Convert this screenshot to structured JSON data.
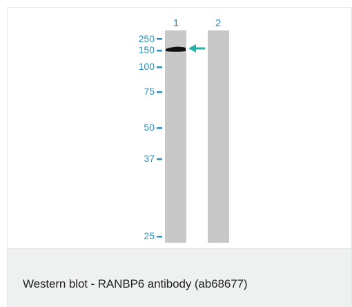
{
  "figure": {
    "lanes": [
      {
        "label": "1"
      },
      {
        "label": "2"
      }
    ],
    "markers": [
      "250",
      "150",
      "100",
      "75",
      "50",
      "37",
      "25"
    ],
    "colors": {
      "marker": "#2a8fb8",
      "arrow": "#27b2a6",
      "lane": "#c8c8c8",
      "band": "#111111"
    }
  },
  "caption": "Western blot - RANBP6 antibody (ab68677)"
}
